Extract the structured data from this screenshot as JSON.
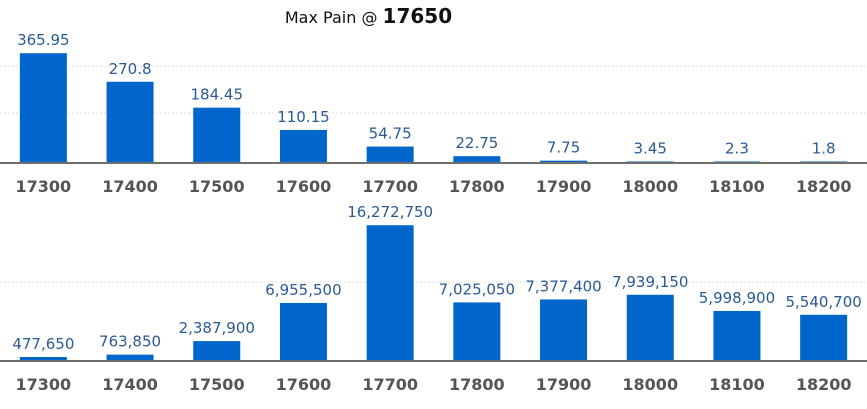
{
  "header": {
    "prefix": "Max Pain @ ",
    "max_pain_strike": "17650"
  },
  "colors": {
    "bar": "#0066cc",
    "value_label": "#2a5a93",
    "axis": "#6e6e6e",
    "tick": "#555555",
    "grid": "#dddddd"
  },
  "chart_data": [
    {
      "type": "bar",
      "title": "",
      "categories": [
        "17300",
        "17400",
        "17500",
        "17600",
        "17700",
        "17800",
        "17900",
        "18000",
        "18100",
        "18200"
      ],
      "values": [
        365.95,
        270.8,
        184.45,
        110.15,
        54.75,
        22.75,
        7.75,
        3.45,
        2.3,
        1.8
      ],
      "labels": [
        "365.95",
        "270.8",
        "184.45",
        "110.15",
        "54.75",
        "22.75",
        "7.75",
        "3.45",
        "2.3",
        "1.8"
      ],
      "ylim": [
        0,
        410
      ],
      "grid": true,
      "legend": "none"
    },
    {
      "type": "bar",
      "title": "",
      "categories": [
        "17300",
        "17400",
        "17500",
        "17600",
        "17700",
        "17800",
        "17900",
        "18000",
        "18100",
        "18200"
      ],
      "values": [
        477650,
        763850,
        2387900,
        6955500,
        16272750,
        7025050,
        7377400,
        7939150,
        5998900,
        5540700
      ],
      "labels": [
        "477,650",
        "763,850",
        "2,387,900",
        "6,955,500",
        "16,272,750",
        "7,025,050",
        "7,377,400",
        "7,939,150",
        "5,998,900",
        "5,540,700"
      ],
      "ylim": [
        0,
        17500000
      ],
      "grid": true,
      "legend": "none"
    }
  ]
}
